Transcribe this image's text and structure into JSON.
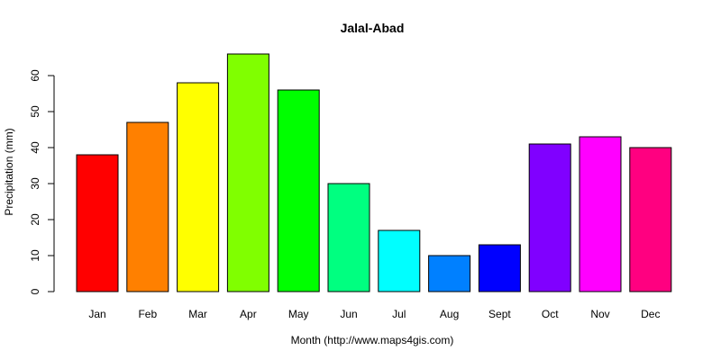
{
  "chart_data": {
    "type": "bar",
    "title": "Jalal-Abad",
    "xlabel": "Month (http://www.maps4gis.com)",
    "ylabel": "Precipitation (mm)",
    "ylim": [
      0,
      66
    ],
    "yticks": [
      0,
      10,
      20,
      30,
      40,
      50,
      60
    ],
    "grid": false,
    "categories": [
      "Jan",
      "Feb",
      "Mar",
      "Apr",
      "May",
      "Jun",
      "Jul",
      "Aug",
      "Sept",
      "Oct",
      "Nov",
      "Dec"
    ],
    "values": [
      38,
      47,
      58,
      66,
      56,
      30,
      17,
      10,
      13,
      41,
      43,
      40
    ],
    "colors": [
      "#FF0000",
      "#FF8000",
      "#FFFF00",
      "#80FF00",
      "#00FF00",
      "#00FF80",
      "#00FFFF",
      "#0080FF",
      "#0000FF",
      "#8000FF",
      "#FF00FF",
      "#FF0080"
    ]
  }
}
